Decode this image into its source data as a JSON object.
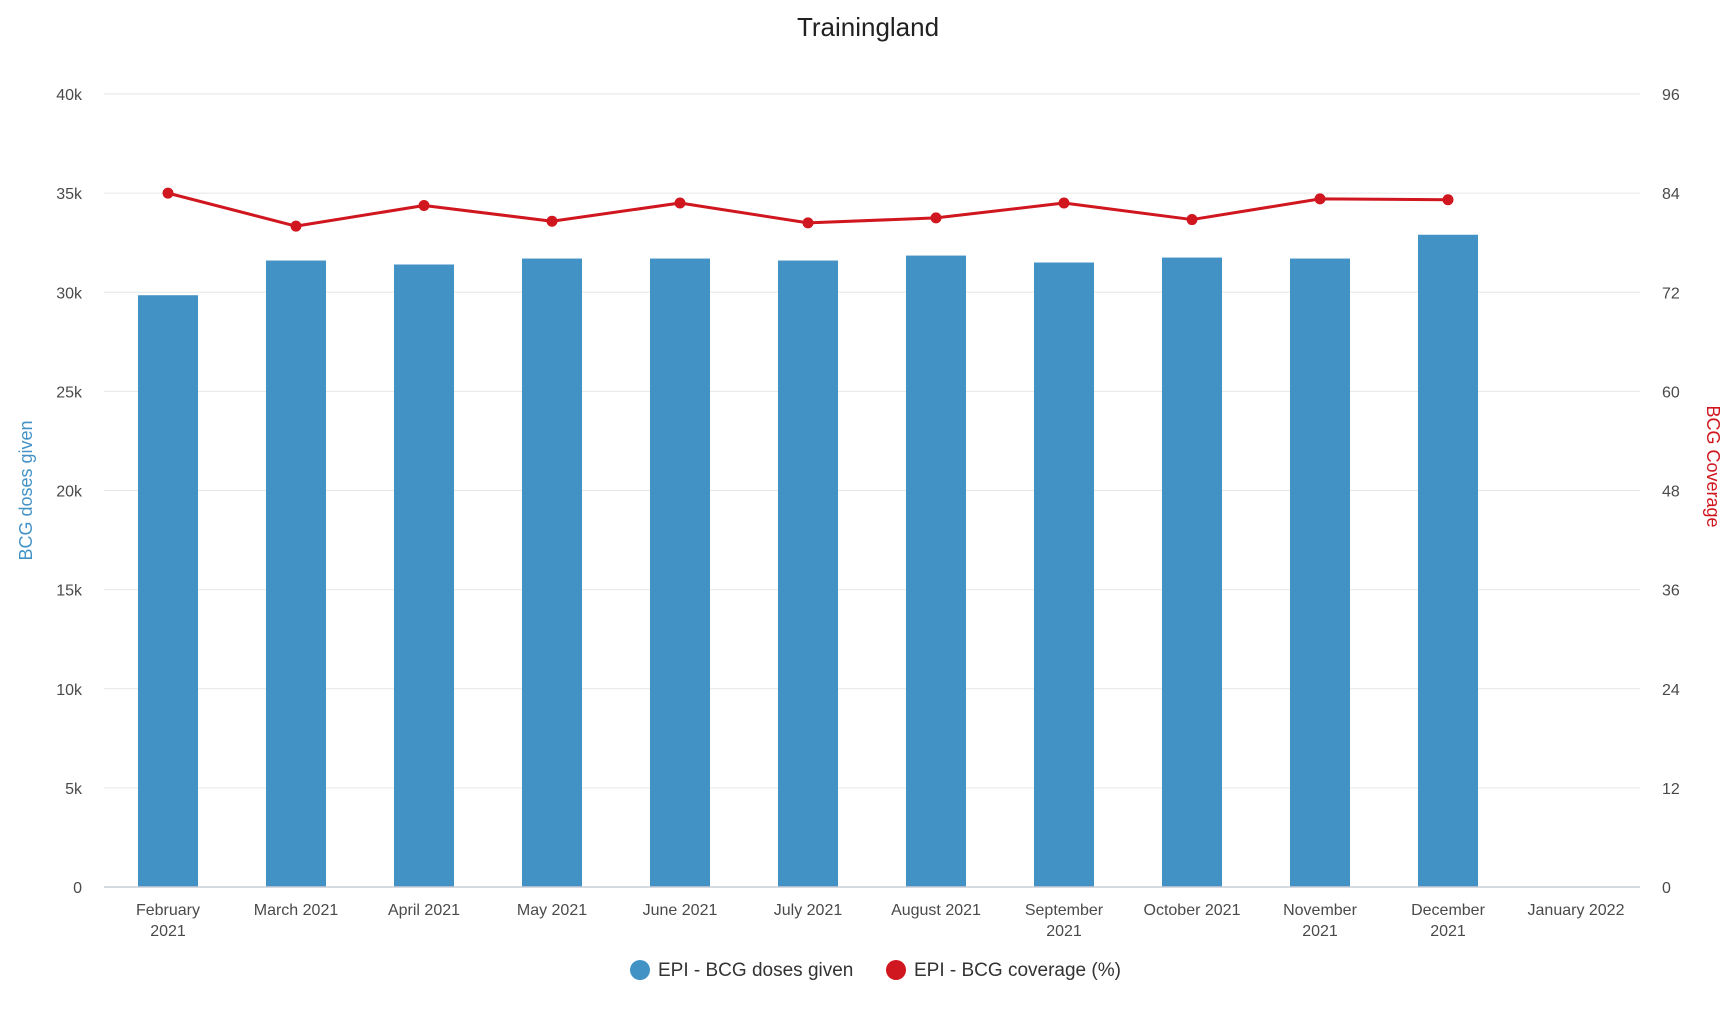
{
  "chart_data": {
    "type": "bar+line",
    "title": "Trainingland",
    "categories": [
      "February 2021",
      "March 2021",
      "April 2021",
      "May 2021",
      "June 2021",
      "July 2021",
      "August 2021",
      "September 2021",
      "October 2021",
      "November 2021",
      "December 2021",
      "January 2022"
    ],
    "series": [
      {
        "name": "EPI - BCG doses given",
        "type": "bar",
        "axis": "left",
        "color": "#4392c6",
        "values": [
          29850,
          31600,
          31400,
          31700,
          31700,
          31600,
          31850,
          31500,
          31750,
          31700,
          32900,
          null
        ]
      },
      {
        "name": "EPI - BCG coverage (%)",
        "type": "line",
        "axis": "right",
        "color": "#d0161e",
        "values": [
          84.0,
          80.0,
          82.5,
          80.6,
          82.8,
          80.4,
          81.0,
          82.8,
          80.8,
          83.3,
          83.2,
          null
        ]
      }
    ],
    "y_left": {
      "label": "BCG doses given",
      "range": [
        0,
        40000
      ],
      "ticks": [
        0,
        5000,
        10000,
        15000,
        20000,
        25000,
        30000,
        35000,
        40000
      ],
      "tick_labels": [
        "0",
        "5k",
        "10k",
        "15k",
        "20k",
        "25k",
        "30k",
        "35k",
        "40k"
      ],
      "color": "#4392c6"
    },
    "y_right": {
      "label": "BCG Coverage",
      "range": [
        0,
        96
      ],
      "ticks": [
        0,
        12,
        24,
        36,
        48,
        60,
        72,
        84,
        96
      ],
      "tick_labels": [
        "0",
        "12",
        "24",
        "36",
        "48",
        "60",
        "72",
        "84",
        "96"
      ],
      "color": "#d0161e"
    },
    "grid": true,
    "legend": "bottom-center"
  }
}
